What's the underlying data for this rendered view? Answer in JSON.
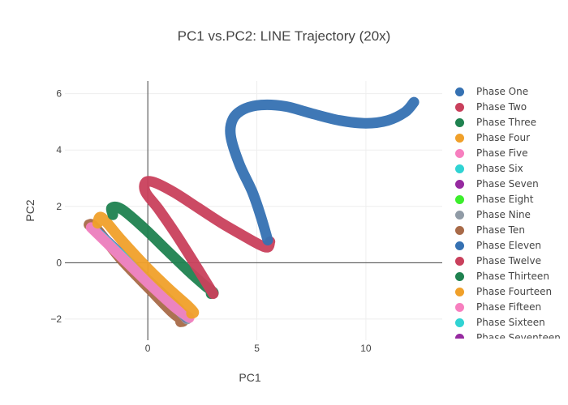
{
  "chart_data": {
    "type": "line",
    "title": "PC1 vs.PC2: LINE Trajectory (20x)",
    "xlabel": "PC1",
    "ylabel": "PC2",
    "xlim": [
      -3.8,
      13.5
    ],
    "ylim": [
      -2.75,
      6.45
    ],
    "xticks": [
      0,
      5,
      10
    ],
    "yticks": [
      -2,
      0,
      2,
      4,
      6
    ],
    "grid": true,
    "zeroline": true,
    "legend_position": "right",
    "series": [
      {
        "name": "Phase One",
        "color": "#3571b2",
        "x": [
          5.5,
          5.2,
          4.8,
          4.2,
          3.8,
          3.9,
          4.4,
          5.2,
          6.3,
          7.5,
          8.8,
          10.0,
          11.0,
          11.8,
          12.2
        ],
        "y": [
          0.8,
          1.6,
          2.5,
          3.5,
          4.5,
          5.1,
          5.45,
          5.6,
          5.55,
          5.3,
          5.05,
          4.95,
          5.05,
          5.35,
          5.7
        ]
      },
      {
        "name": "Phase Two",
        "color": "#c9405c",
        "x": [
          3.0,
          2.2,
          1.3,
          0.5,
          -0.1,
          -0.1,
          0.3,
          1.2,
          2.3,
          3.4,
          4.4,
          5.1,
          5.5,
          5.6
        ],
        "y": [
          -1.1,
          -0.1,
          1.0,
          1.9,
          2.5,
          2.85,
          2.85,
          2.5,
          1.95,
          1.4,
          0.95,
          0.65,
          0.55,
          0.75
        ]
      },
      {
        "name": "Phase Three",
        "color": "#1f8250",
        "x": [
          -1.6,
          -1.65,
          -1.2,
          -0.2,
          0.8,
          1.8,
          2.6,
          3.0,
          2.9
        ],
        "y": [
          1.7,
          1.95,
          1.9,
          1.25,
          0.5,
          -0.25,
          -0.8,
          -1.05,
          -1.1
        ]
      },
      {
        "name": "Phase Four",
        "color": "#f0a02a",
        "x": [
          -2.3,
          -2.1,
          -1.2,
          0.0,
          1.0,
          1.8,
          2.1,
          2.0
        ],
        "y": [
          1.4,
          1.6,
          0.8,
          -0.2,
          -0.95,
          -1.5,
          -1.75,
          -1.8
        ]
      },
      {
        "name": "Phase Five",
        "color": "#f77fbf",
        "x": [
          -2.6,
          -1.4,
          0.0,
          1.2,
          1.9
        ],
        "y": [
          1.25,
          0.35,
          -0.7,
          -1.55,
          -1.95
        ]
      },
      {
        "name": "Phase Six",
        "color": "#30d3d3",
        "x": [
          -2.5,
          -1.2,
          0.2,
          1.3,
          1.85
        ],
        "y": [
          1.2,
          0.25,
          -0.8,
          -1.6,
          -1.95
        ]
      },
      {
        "name": "Phase Seven",
        "color": "#962aa0",
        "x": [
          -2.4,
          -1.1,
          0.3,
          1.4,
          1.8
        ],
        "y": [
          1.15,
          0.2,
          -0.85,
          -1.65,
          -1.95
        ]
      },
      {
        "name": "Phase Eight",
        "color": "#3cee2c",
        "x": [
          -2.45,
          -1.15,
          0.25,
          1.35,
          1.8
        ],
        "y": [
          1.2,
          0.2,
          -0.8,
          -1.6,
          -1.95
        ]
      },
      {
        "name": "Phase Nine",
        "color": "#909ba6",
        "x": [
          -2.35,
          -1.05,
          0.35,
          1.45,
          1.8
        ],
        "y": [
          1.1,
          0.15,
          -0.9,
          -1.7,
          -2.0
        ]
      },
      {
        "name": "Phase Ten",
        "color": "#a86a48",
        "x": [
          -2.7,
          -2.4,
          -1.2,
          0.1,
          1.1,
          1.6,
          1.5
        ],
        "y": [
          1.35,
          1.25,
          0.1,
          -0.95,
          -1.75,
          -2.05,
          -2.1
        ]
      },
      {
        "name": "Phase Eleven",
        "color": "#3571b2",
        "x": [],
        "y": []
      },
      {
        "name": "Phase Twelve",
        "color": "#c9405c",
        "x": [],
        "y": []
      },
      {
        "name": "Phase Thirteen",
        "color": "#1f8250",
        "x": [],
        "y": []
      },
      {
        "name": "Phase Fourteen",
        "color": "#f0a02a",
        "x": [],
        "y": []
      },
      {
        "name": "Phase Fifteen",
        "color": "#f77fbf",
        "x": [],
        "y": []
      },
      {
        "name": "Phase Sixteen",
        "color": "#30d3d3",
        "x": [],
        "y": []
      },
      {
        "name": "Phase Seventeen",
        "color": "#962aa0",
        "x": [],
        "y": []
      }
    ]
  }
}
